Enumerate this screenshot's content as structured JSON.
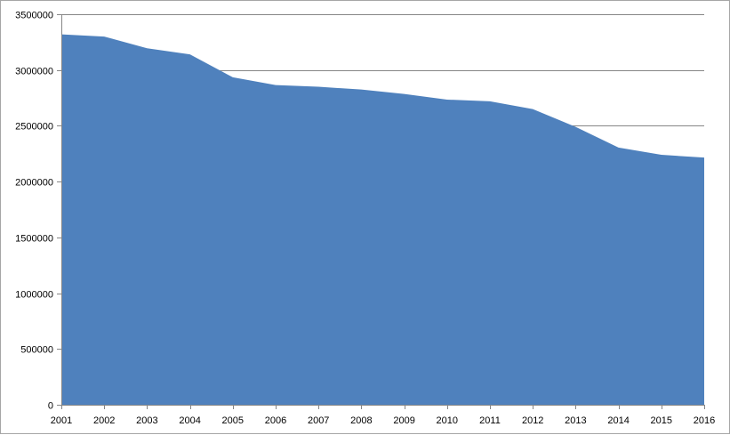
{
  "chart_data": {
    "type": "area",
    "title": "",
    "xlabel": "",
    "ylabel": "",
    "x": [
      "2001",
      "2002",
      "2003",
      "2004",
      "2005",
      "2006",
      "2007",
      "2008",
      "2009",
      "2010",
      "2011",
      "2012",
      "2013",
      "2014",
      "2015",
      "2016"
    ],
    "series": [
      {
        "values": [
          3320000,
          3300000,
          3195000,
          3140000,
          2935000,
          2865000,
          2850000,
          2825000,
          2785000,
          2735000,
          2720000,
          2650000,
          2490000,
          2305000,
          2240000,
          2215000
        ],
        "color": "#4f81bd"
      }
    ],
    "ylim": [
      0,
      3500000
    ],
    "yticks": [
      0,
      500000,
      1000000,
      1500000,
      2000000,
      2500000,
      3000000,
      3500000
    ],
    "grid": "horizontal",
    "legend": "none"
  }
}
